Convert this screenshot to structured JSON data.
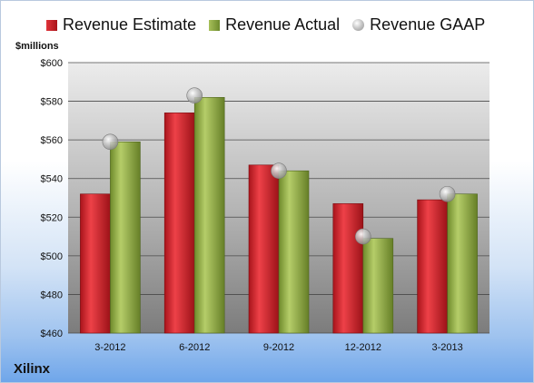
{
  "legend": {
    "estimate": "Revenue Estimate",
    "actual": "Revenue Actual",
    "gaap": "Revenue GAAP"
  },
  "unit_label": "$millions",
  "company": "Xilinx",
  "colors": {
    "estimate": "#c8232b",
    "actual": "#8aa640",
    "gaap": "#b5b5b5",
    "plot_bg_top": "#e9e9e9",
    "plot_bg_bottom": "#7e7e7e"
  },
  "chart_data": {
    "type": "bar",
    "categories": [
      "3-2012",
      "6-2012",
      "9-2012",
      "12-2012",
      "3-2013"
    ],
    "series": [
      {
        "name": "Revenue Estimate",
        "values": [
          532,
          574,
          547,
          527,
          529
        ]
      },
      {
        "name": "Revenue Actual",
        "values": [
          559,
          582,
          544,
          509,
          532
        ]
      },
      {
        "name": "Revenue GAAP",
        "values": [
          559,
          583,
          544,
          510,
          532
        ]
      }
    ],
    "ylabel": "$millions",
    "ylim": [
      460,
      600
    ],
    "yticks": [
      "$460",
      "$480",
      "$500",
      "$520",
      "$540",
      "$560",
      "$580",
      "$600"
    ],
    "ytick_values": [
      460,
      480,
      500,
      520,
      540,
      560,
      580,
      600
    ],
    "grid": true,
    "legend_position": "top"
  }
}
